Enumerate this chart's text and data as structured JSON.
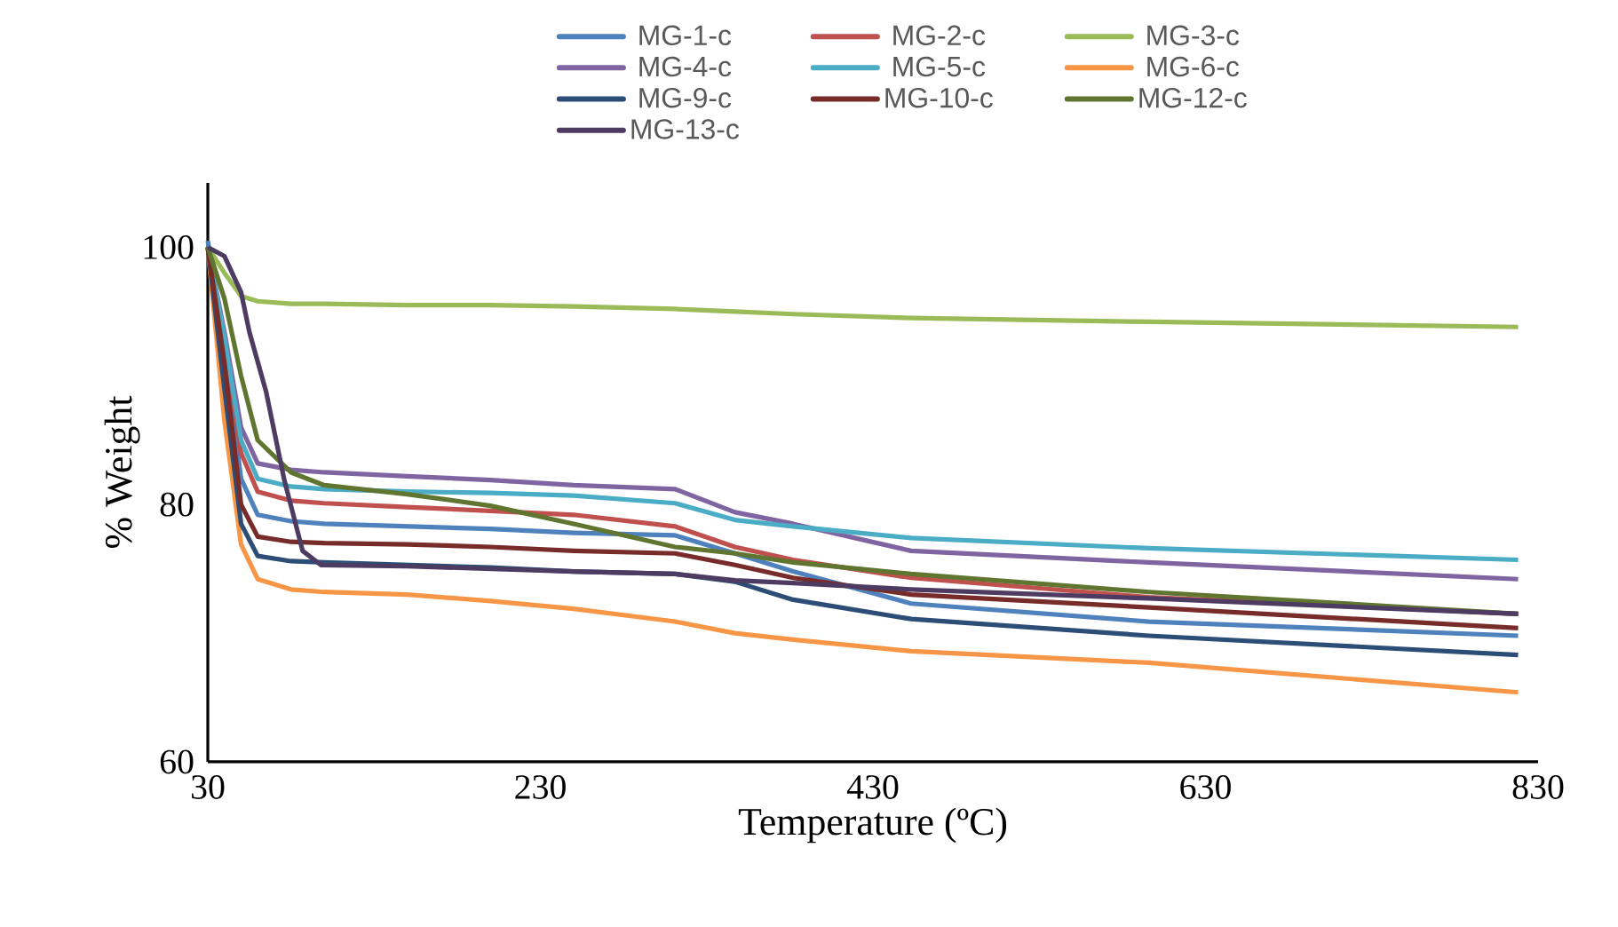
{
  "chart_data": {
    "type": "line",
    "xlabel": "Temperature (ºC)",
    "ylabel": "% Weight",
    "xlim": [
      30,
      830
    ],
    "xticks": [
      30,
      230,
      430,
      630,
      830
    ],
    "ylim": [
      60,
      105
    ],
    "yticks": [
      60,
      80,
      100
    ],
    "grid": false,
    "legend": "top",
    "line_style": "solid",
    "x": [
      30,
      40,
      50,
      60,
      80,
      100,
      150,
      200,
      250,
      311,
      347,
      382,
      453,
      596,
      818
    ],
    "series": [
      {
        "name": "MG-1-c",
        "color": "#4f81bd",
        "values": [
          100.5,
          92,
          82,
          79.2,
          78.7,
          78.5,
          78.3,
          78.1,
          77.8,
          77.6,
          76.2,
          74.8,
          72.3,
          70.9,
          69.8
        ]
      },
      {
        "name": "MG-2-c",
        "color": "#c0504d",
        "values": [
          100,
          93,
          84,
          81,
          80.3,
          80.1,
          79.8,
          79.5,
          79.2,
          78.3,
          76.7,
          75.7,
          74.3,
          72.8,
          71.5
        ]
      },
      {
        "name": "MG-3-c",
        "color": "#9bbb59",
        "values": [
          100,
          98,
          96.2,
          95.8,
          95.6,
          95.6,
          95.5,
          95.5,
          95.4,
          95.2,
          95.0,
          94.8,
          94.5,
          94.2,
          93.8
        ]
      },
      {
        "name": "MG-4-c",
        "color": "#8064a2",
        "values": [
          100,
          93.4,
          86,
          83.2,
          82.7,
          82.5,
          82.2,
          81.9,
          81.5,
          81.2,
          79.4,
          78.5,
          76.4,
          75.5,
          74.2
        ]
      },
      {
        "name": "MG-5-c",
        "color": "#4bacc6",
        "values": [
          100,
          93,
          85,
          82,
          81.4,
          81.2,
          81.0,
          80.9,
          80.7,
          80.1,
          78.8,
          78.3,
          77.4,
          76.6,
          75.7
        ]
      },
      {
        "name": "MG-6-c",
        "color": "#f79646",
        "values": [
          100,
          86.5,
          76.9,
          74.2,
          73.4,
          73.2,
          73.0,
          72.5,
          71.9,
          70.9,
          70.0,
          69.5,
          68.6,
          67.7,
          65.4
        ]
      },
      {
        "name": "MG-9-c",
        "color": "#2c4d75",
        "values": [
          100,
          89,
          78.5,
          76,
          75.6,
          75.5,
          75.3,
          75.1,
          74.8,
          74.6,
          74.0,
          72.6,
          71.1,
          69.8,
          68.3
        ]
      },
      {
        "name": "MG-10-c",
        "color": "#772c2a",
        "values": [
          100,
          91,
          80,
          77.5,
          77.1,
          77.0,
          76.9,
          76.7,
          76.4,
          76.2,
          75.3,
          74.3,
          73.0,
          72.0,
          70.4
        ]
      },
      {
        "name": "MG-12-c",
        "color": "#5f7530",
        "values": [
          100,
          96,
          90,
          85,
          82.5,
          81.5,
          80.8,
          79.9,
          78.5,
          76.7,
          76.2,
          75.5,
          74.6,
          73.2,
          71.5
        ]
      },
      {
        "name": "MG-13-c",
        "color": "#4d3b62",
        "x": [
          30,
          40,
          50,
          55,
          65,
          76,
          87,
          98,
          150,
          200,
          250,
          311,
          347,
          382,
          453,
          596,
          818
        ],
        "values": [
          100,
          99.3,
          96.5,
          93.4,
          88.8,
          81.9,
          76.4,
          75.3,
          75.2,
          75.0,
          74.8,
          74.6,
          74.1,
          73.9,
          73.4,
          72.7,
          71.5
        ]
      }
    ]
  }
}
